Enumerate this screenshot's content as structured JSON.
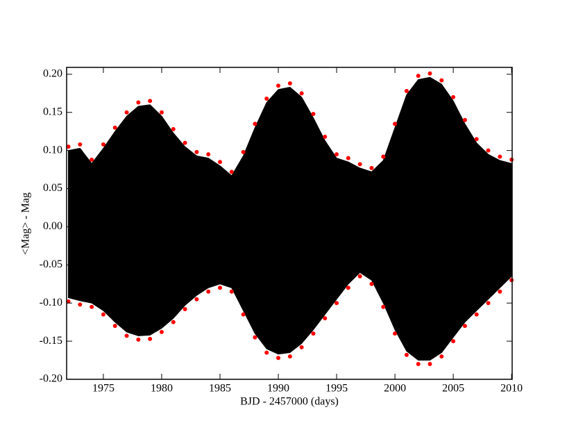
{
  "chart_data": {
    "type": "scatter",
    "x_label": "BJD - 2457000 (days)",
    "y_label": "<Mag> - Mag",
    "x": [
      1972,
      1973,
      1974,
      1975,
      1976,
      1977,
      1978,
      1979,
      1980,
      1981,
      1982,
      1983,
      1984,
      1985,
      1986,
      1987,
      1988,
      1989,
      1990,
      1991,
      1992,
      1993,
      1994,
      1995,
      1996,
      1997,
      1998,
      1999,
      2000,
      2001,
      2002,
      2003,
      2004,
      2005,
      2006,
      2007,
      2008,
      2009,
      2010
    ],
    "series": [
      {
        "type": "area",
        "color": "#000000",
        "values": [
          0.1,
          0.103,
          0.083,
          0.103,
          0.125,
          0.145,
          0.158,
          0.16,
          0.145,
          0.123,
          0.105,
          0.093,
          0.09,
          0.08,
          0.067,
          0.093,
          0.13,
          0.163,
          0.18,
          0.183,
          0.17,
          0.143,
          0.113,
          0.09,
          0.085,
          0.077,
          0.072,
          0.087,
          0.13,
          0.173,
          0.193,
          0.196,
          0.187,
          0.165,
          0.135,
          0.11,
          0.095,
          0.087,
          0.083
        ]
      },
      {
        "type": "area",
        "color": "#000000",
        "values": [
          -0.093,
          -0.097,
          -0.1,
          -0.11,
          -0.125,
          -0.138,
          -0.143,
          -0.142,
          -0.133,
          -0.12,
          -0.103,
          -0.09,
          -0.08,
          -0.075,
          -0.08,
          -0.11,
          -0.14,
          -0.16,
          -0.167,
          -0.165,
          -0.153,
          -0.135,
          -0.115,
          -0.095,
          -0.075,
          -0.06,
          -0.07,
          -0.1,
          -0.135,
          -0.163,
          -0.175,
          -0.175,
          -0.165,
          -0.145,
          -0.125,
          -0.11,
          -0.095,
          -0.08,
          -0.065
        ]
      },
      {
        "type": "scatter",
        "color": "#ff0000",
        "values": [
          0.105,
          0.108,
          0.088,
          0.108,
          0.13,
          0.15,
          0.163,
          0.165,
          0.15,
          0.128,
          0.11,
          0.098,
          0.095,
          0.085,
          0.072,
          0.098,
          0.135,
          0.168,
          0.185,
          0.188,
          0.175,
          0.148,
          0.118,
          0.095,
          0.09,
          0.082,
          0.077,
          0.092,
          0.135,
          0.178,
          0.198,
          0.201,
          0.192,
          0.17,
          0.14,
          0.115,
          0.1,
          0.092,
          0.088
        ]
      },
      {
        "type": "scatter",
        "color": "#ff0000",
        "values": [
          -0.098,
          -0.102,
          -0.105,
          -0.115,
          -0.13,
          -0.143,
          -0.148,
          -0.147,
          -0.138,
          -0.125,
          -0.108,
          -0.095,
          -0.085,
          -0.08,
          -0.085,
          -0.115,
          -0.145,
          -0.165,
          -0.172,
          -0.17,
          -0.158,
          -0.14,
          -0.12,
          -0.1,
          -0.08,
          -0.065,
          -0.075,
          -0.105,
          -0.14,
          -0.168,
          -0.18,
          -0.18,
          -0.17,
          -0.15,
          -0.13,
          -0.115,
          -0.1,
          -0.085,
          -0.07
        ]
      }
    ],
    "xlim": [
      1971.85,
      2010.05
    ],
    "ylim": [
      -0.2,
      0.209
    ],
    "xticks": [
      1975,
      1980,
      1985,
      1990,
      1995,
      2000,
      2005,
      2010
    ],
    "yticks": [
      {
        "value": 0.2,
        "label": "0.20"
      },
      0.15,
      {
        "value": 0.1,
        "label": "0.10"
      },
      0.05,
      {
        "value": 0,
        "label": "0.00"
      },
      -0.05,
      {
        "value": -0.1,
        "label": "-0.10"
      },
      -0.15,
      {
        "value": -0.2,
        "label": "-0.20"
      }
    ],
    "grid": false
  }
}
